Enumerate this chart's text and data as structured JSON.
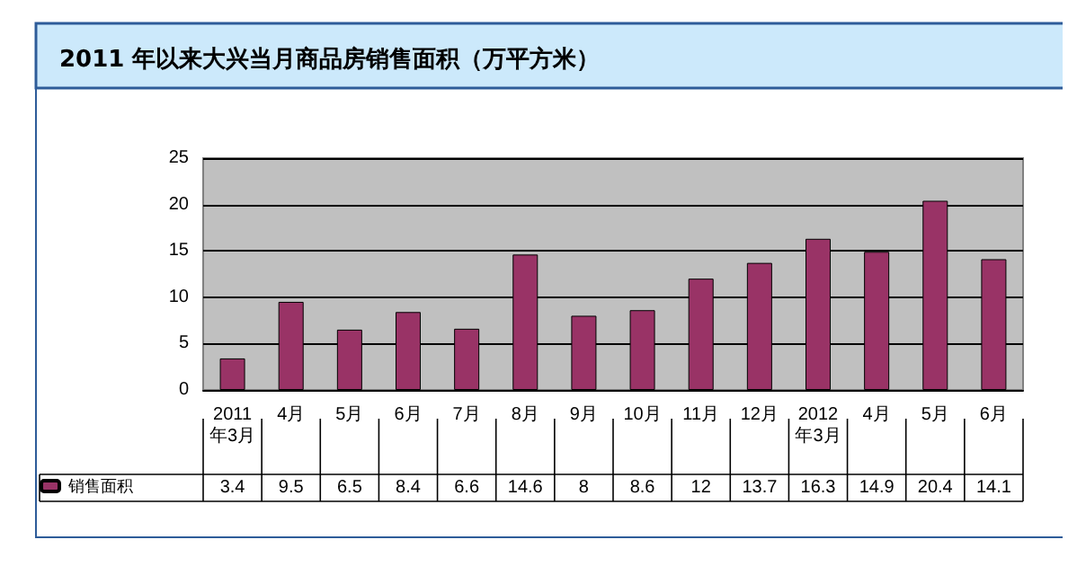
{
  "chart_data": {
    "type": "bar",
    "title": "2011 年以来大兴当月商品房销售面积（万平方米）",
    "categories": [
      "2011年3月",
      "4月",
      "5月",
      "6月",
      "7月",
      "8月",
      "9月",
      "10月",
      "11月",
      "12月",
      "2012年3月",
      "4月",
      "5月",
      "6月"
    ],
    "series": [
      {
        "name": "销售面积",
        "color": "#993366",
        "values": [
          3.4,
          9.5,
          6.5,
          8.4,
          6.6,
          14.6,
          8,
          8.6,
          12,
          13.7,
          16.3,
          14.9,
          20.4,
          14.1
        ]
      }
    ],
    "ylim": [
      0,
      25
    ],
    "yticks": [
      0,
      5,
      10,
      15,
      20,
      25
    ],
    "grid": "y",
    "legend": "bottom left",
    "data_labels": true
  }
}
